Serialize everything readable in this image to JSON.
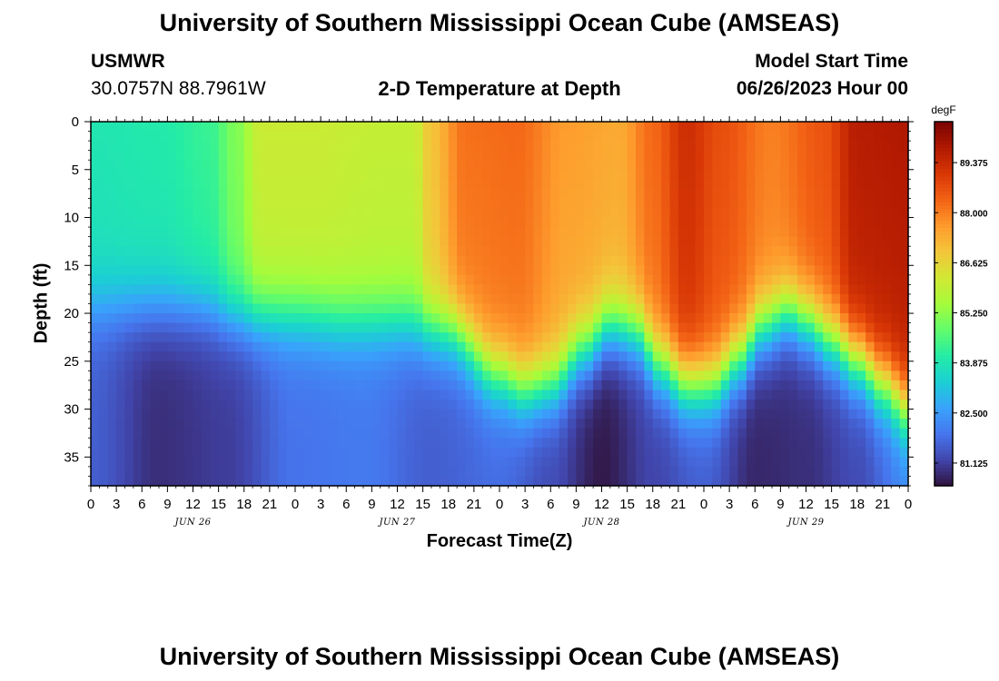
{
  "header": {
    "title": "University of Southern Mississippi Ocean Cube (AMSEAS)",
    "station_name": "USMWR",
    "station_coords": "30.0757N  88.7961W",
    "model_start_label": "Model Start Time",
    "model_start_value": "06/26/2023 Hour 00"
  },
  "footer": {
    "title": "University of Southern Mississippi Ocean Cube (AMSEAS)"
  },
  "chart_data": {
    "type": "heatmap",
    "title": "2-D Temperature at Depth",
    "xlabel": "Forecast Time(Z)",
    "ylabel": "Depth (ft)",
    "x_range_hours": [
      0,
      96
    ],
    "y_range_ft": [
      0,
      38
    ],
    "x_tick_hours": [
      0,
      3,
      6,
      9,
      12,
      15,
      18,
      21,
      24,
      27,
      30,
      33,
      36,
      39,
      42,
      45,
      48,
      51,
      54,
      57,
      60,
      63,
      66,
      69,
      72,
      75,
      78,
      81,
      84,
      87,
      90,
      93,
      96
    ],
    "x_tick_labels": [
      "0",
      "3",
      "6",
      "9",
      "12",
      "15",
      "18",
      "21",
      "0",
      "3",
      "6",
      "9",
      "12",
      "15",
      "18",
      "21",
      "0",
      "3",
      "6",
      "9",
      "12",
      "15",
      "18",
      "21",
      "0",
      "3",
      "6",
      "9",
      "12",
      "15",
      "18",
      "21",
      "0"
    ],
    "date_labels": [
      {
        "text": "JUN 26",
        "hour": 12
      },
      {
        "text": "JUN 27",
        "hour": 36
      },
      {
        "text": "JUN 28",
        "hour": 60
      },
      {
        "text": "JUN 29",
        "hour": 84
      }
    ],
    "y_ticks": [
      0,
      5,
      10,
      15,
      20,
      25,
      30,
      35
    ],
    "y_tick_labels": [
      "0",
      "5",
      "10",
      "15",
      "20",
      "25",
      "30",
      "35"
    ],
    "colorbar": {
      "unit": "degF",
      "min": 80.5,
      "max": 90.5,
      "ticks": [
        81.125,
        82.5,
        83.875,
        85.25,
        86.625,
        88.0,
        89.375
      ],
      "tick_labels": [
        "81.125",
        "82.500",
        "83.875",
        "85.250",
        "86.625",
        "88.000",
        "89.375"
      ],
      "colors": [
        "#30123b",
        "#4145ab",
        "#4675ed",
        "#39a2fc",
        "#1bcfd4",
        "#24eca6",
        "#61fc6c",
        "#a4fc3b",
        "#d1e834",
        "#f3c63a",
        "#fe9b2d",
        "#f36315",
        "#d93806",
        "#b11901",
        "#7a0402"
      ]
    },
    "surface_temp_by_hour": [
      [
        0,
        83.9
      ],
      [
        8,
        84.0
      ],
      [
        14,
        84.3
      ],
      [
        17,
        85.1
      ],
      [
        20,
        86.1
      ],
      [
        26,
        86.1
      ],
      [
        34,
        86.0
      ],
      [
        38,
        86.0
      ],
      [
        40,
        87.0
      ],
      [
        44,
        88.2
      ],
      [
        50,
        88.3
      ],
      [
        56,
        87.6
      ],
      [
        62,
        87.4
      ],
      [
        66,
        88.3
      ],
      [
        70,
        89.3
      ],
      [
        74,
        88.7
      ],
      [
        80,
        88.0
      ],
      [
        86,
        88.6
      ],
      [
        90,
        89.7
      ],
      [
        96,
        89.8
      ]
    ],
    "mixed_layer_depth_ft_by_hour": [
      [
        0,
        19.5
      ],
      [
        12,
        19.5
      ],
      [
        18,
        20.5
      ],
      [
        24,
        20.5
      ],
      [
        30,
        21.0
      ],
      [
        36,
        21.0
      ],
      [
        42,
        22.0
      ],
      [
        48,
        26.5
      ],
      [
        51,
        28.0
      ],
      [
        54,
        27.5
      ],
      [
        58,
        24.0
      ],
      [
        61,
        21.5
      ],
      [
        64,
        22.0
      ],
      [
        67,
        25.5
      ],
      [
        70,
        27.5
      ],
      [
        73,
        27.5
      ],
      [
        76,
        25.0
      ],
      [
        79,
        21.5
      ],
      [
        82,
        20.0
      ],
      [
        84,
        21.0
      ],
      [
        87,
        23.0
      ],
      [
        90,
        25.0
      ],
      [
        93,
        27.5
      ],
      [
        96,
        30.0
      ]
    ],
    "bottom_temp_by_hour": [
      [
        0,
        81.6
      ],
      [
        8,
        80.9
      ],
      [
        16,
        81.1
      ],
      [
        24,
        81.9
      ],
      [
        32,
        82.0
      ],
      [
        40,
        81.6
      ],
      [
        48,
        81.8
      ],
      [
        54,
        81.3
      ],
      [
        60,
        80.6
      ],
      [
        66,
        81.2
      ],
      [
        72,
        81.6
      ],
      [
        78,
        80.8
      ],
      [
        84,
        80.9
      ],
      [
        90,
        81.3
      ],
      [
        96,
        82.2
      ]
    ]
  }
}
